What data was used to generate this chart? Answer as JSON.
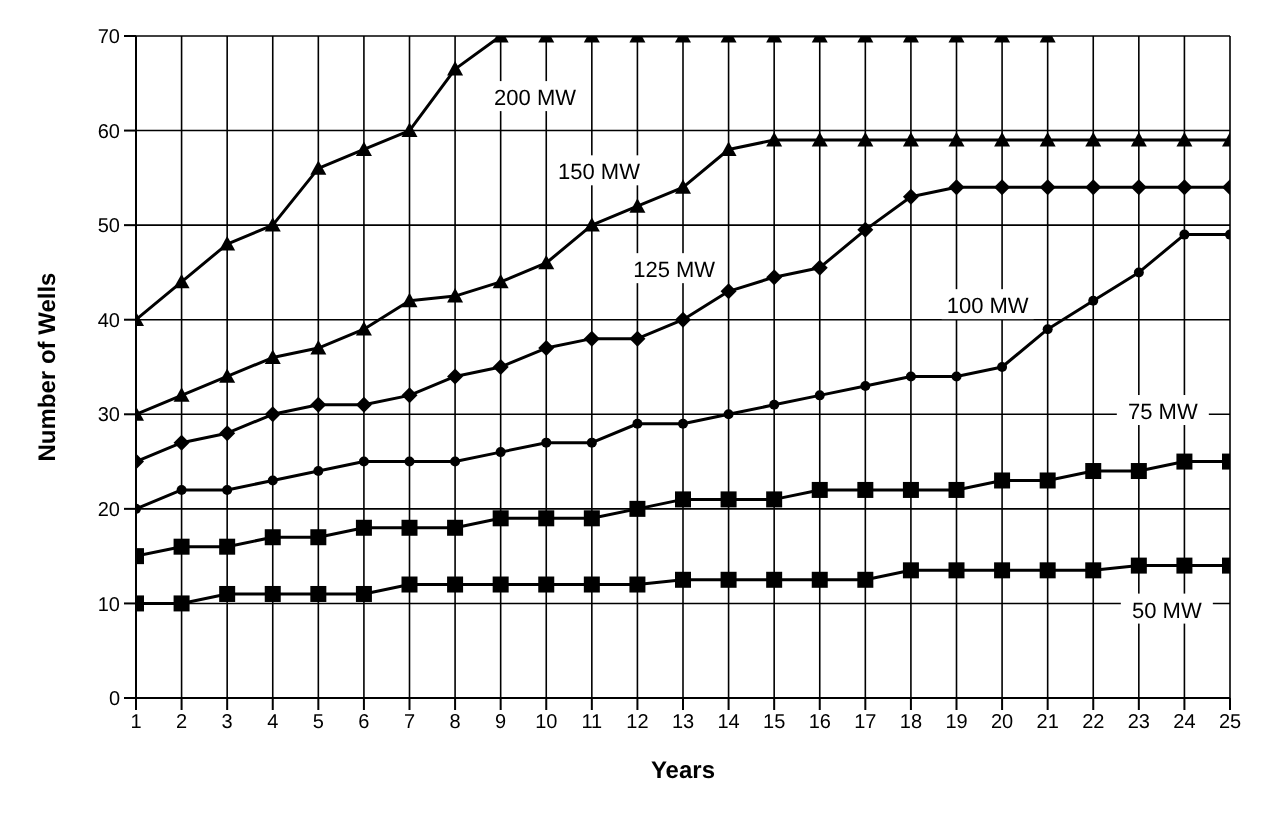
{
  "chart_data": {
    "type": "line",
    "xlabel": "Years",
    "ylabel": "Number of Wells",
    "x": [
      1,
      2,
      3,
      4,
      5,
      6,
      7,
      8,
      9,
      10,
      11,
      12,
      13,
      14,
      15,
      16,
      17,
      18,
      19,
      20,
      21,
      22,
      23,
      24,
      25
    ],
    "xlim": [
      1,
      25
    ],
    "xticks": [
      1,
      2,
      3,
      4,
      5,
      6,
      7,
      8,
      9,
      10,
      11,
      12,
      13,
      14,
      15,
      16,
      17,
      18,
      19,
      20,
      21,
      22,
      23,
      24,
      25
    ],
    "ylim": [
      0,
      70
    ],
    "yticks": [
      0,
      10,
      20,
      30,
      40,
      50,
      60,
      70
    ],
    "grid": true,
    "legend": false,
    "line_style": "solid",
    "series": [
      {
        "name": "200 MW",
        "color": "#000000",
        "marker": "triangle",
        "values": [
          40,
          44,
          48,
          50,
          56,
          58,
          60,
          66.5,
          70,
          70,
          70,
          70,
          70,
          70,
          70,
          70,
          70,
          70,
          70,
          70,
          70,
          null,
          null,
          null,
          null
        ]
      },
      {
        "name": "150 MW",
        "color": "#000000",
        "marker": "triangle",
        "values": [
          30,
          32,
          34,
          36,
          37,
          39,
          42,
          42.5,
          44,
          46,
          50,
          52,
          54,
          58,
          59,
          59,
          59,
          59,
          59,
          59,
          59,
          59,
          59,
          59,
          59
        ]
      },
      {
        "name": "125 MW",
        "color": "#000000",
        "marker": "diamond",
        "values": [
          25,
          27,
          28,
          30,
          31,
          31,
          32,
          34,
          35,
          37,
          38,
          38,
          40,
          43,
          44.5,
          45.5,
          49.5,
          53,
          54,
          54,
          54,
          54,
          54,
          54,
          54
        ]
      },
      {
        "name": "100 MW",
        "color": "#000000",
        "marker": "circle",
        "values": [
          20,
          22,
          22,
          23,
          24,
          25,
          25,
          25,
          26,
          27,
          27,
          29,
          29,
          30,
          31,
          32,
          33,
          34,
          34,
          35,
          39,
          42,
          45,
          49,
          49
        ]
      },
      {
        "name": "75 MW",
        "color": "#000000",
        "marker": "square",
        "values": [
          15,
          16,
          16,
          17,
          17,
          18,
          18,
          18,
          19,
          19,
          19,
          20,
          21,
          21,
          21,
          22,
          22,
          22,
          22,
          23,
          23,
          24,
          24,
          25,
          25
        ]
      },
      {
        "name": "50 MW",
        "color": "#000000",
        "marker": "square",
        "values": [
          10,
          10,
          11,
          11,
          11,
          11,
          12,
          12,
          12,
          12,
          12,
          12,
          12.5,
          12.5,
          12.5,
          12.5,
          12.5,
          13.5,
          13.5,
          13.5,
          13.5,
          13.5,
          14,
          14,
          14
        ]
      }
    ]
  }
}
